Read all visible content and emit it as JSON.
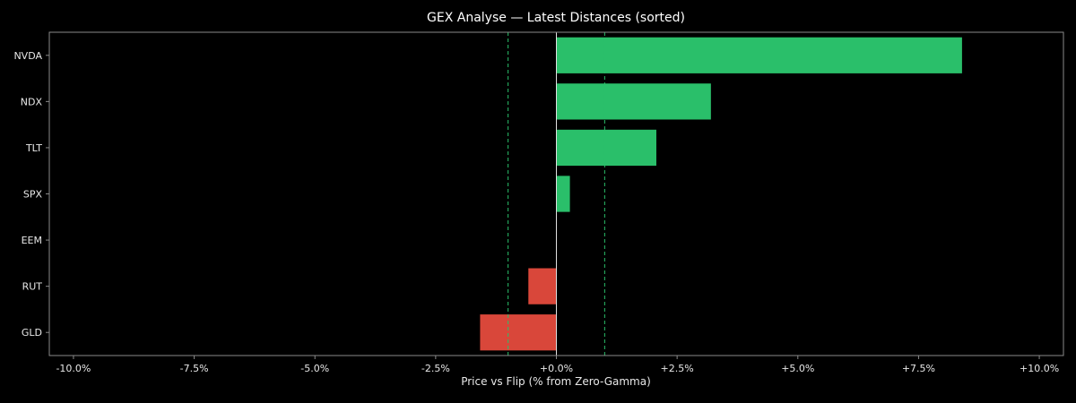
{
  "chart_data": {
    "type": "bar",
    "orientation": "horizontal",
    "title": "GEX Analyse — Latest Distances (sorted)",
    "xlabel": "Price vs Flip (% from Zero-Gamma)",
    "ylabel": "",
    "categories": [
      "NVDA",
      "NDX",
      "TLT",
      "SPX",
      "EEM",
      "RUT",
      "GLD"
    ],
    "values": [
      8.4,
      3.2,
      2.07,
      0.28,
      0.0,
      -0.58,
      -1.58
    ],
    "xlim": [
      -10.5,
      10.5
    ],
    "xticks": [
      -10,
      -7.5,
      -5,
      -2.5,
      0,
      2.5,
      5,
      7.5,
      10
    ],
    "xtick_labels": [
      "-10.0%",
      "-7.5%",
      "-5.0%",
      "-2.5%",
      "+0.0%",
      "+2.5%",
      "+5.0%",
      "+7.5%",
      "+10.0%"
    ],
    "reference_lines": {
      "zero": 0,
      "bands": [
        -1.0,
        1.0
      ]
    },
    "grid": false,
    "legend": "none",
    "colors": {
      "background": "#000000",
      "positive": "#2abf6a",
      "negative": "#d9473a",
      "band_line": "#2abf6a",
      "zero_line": "#e0e0e0",
      "frame": "#8a8a8a",
      "text": "#e8e8e8"
    }
  }
}
